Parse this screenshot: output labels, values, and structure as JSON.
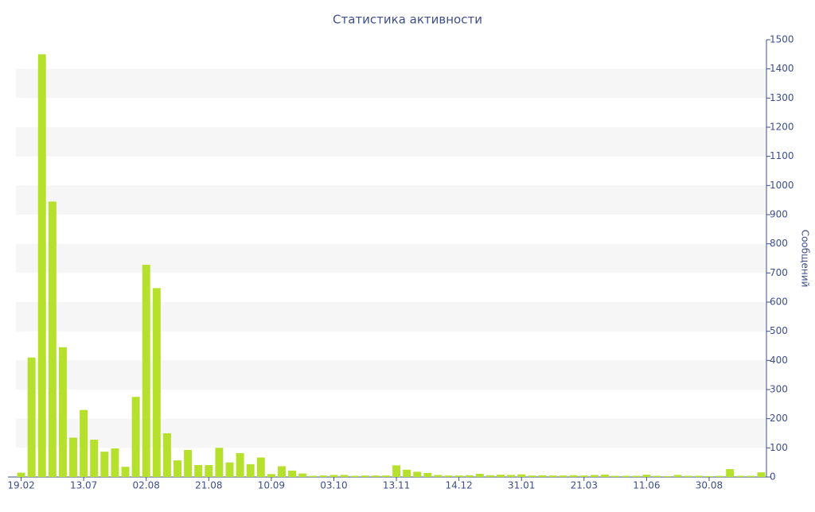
{
  "chart_data": {
    "type": "bar",
    "title": "Статистика активности",
    "y_label": "Сообщений",
    "categories": [
      "19.02",
      null,
      null,
      null,
      null,
      null,
      "13.07",
      null,
      null,
      null,
      null,
      null,
      "02.08",
      null,
      null,
      null,
      null,
      null,
      "21.08",
      null,
      null,
      null,
      null,
      null,
      "10.09",
      null,
      null,
      null,
      null,
      null,
      "03.10",
      null,
      null,
      null,
      null,
      null,
      "13.11",
      null,
      null,
      null,
      null,
      null,
      "14.12",
      null,
      null,
      null,
      null,
      null,
      "31.01",
      null,
      null,
      null,
      null,
      null,
      "21.03",
      null,
      null,
      null,
      null,
      null,
      "11.06",
      null,
      null,
      null,
      null,
      null,
      "30.08",
      null,
      null,
      null,
      null,
      null
    ],
    "values": [
      15,
      410,
      1450,
      945,
      445,
      135,
      230,
      128,
      87,
      98,
      35,
      275,
      728,
      648,
      150,
      57,
      93,
      41,
      41,
      100,
      50,
      82,
      44,
      67,
      10,
      37,
      22,
      12,
      4,
      5,
      7,
      7,
      4,
      5,
      5,
      5,
      40,
      25,
      18,
      14,
      7,
      5,
      5,
      6,
      11,
      6,
      8,
      7,
      9,
      5,
      6,
      5,
      5,
      6,
      5,
      7,
      8,
      4,
      4,
      4,
      8,
      4,
      3,
      7,
      4,
      4,
      3,
      4,
      27,
      4,
      4,
      16
    ],
    "color": "#b5e02b",
    "ylim": [
      0,
      1500
    ],
    "yticks": [
      0,
      100,
      200,
      300,
      400,
      500,
      600,
      700,
      800,
      900,
      1000,
      1100,
      1200,
      1300,
      1400,
      1500
    ],
    "grid": "bands",
    "y_axis_side": "right"
  }
}
